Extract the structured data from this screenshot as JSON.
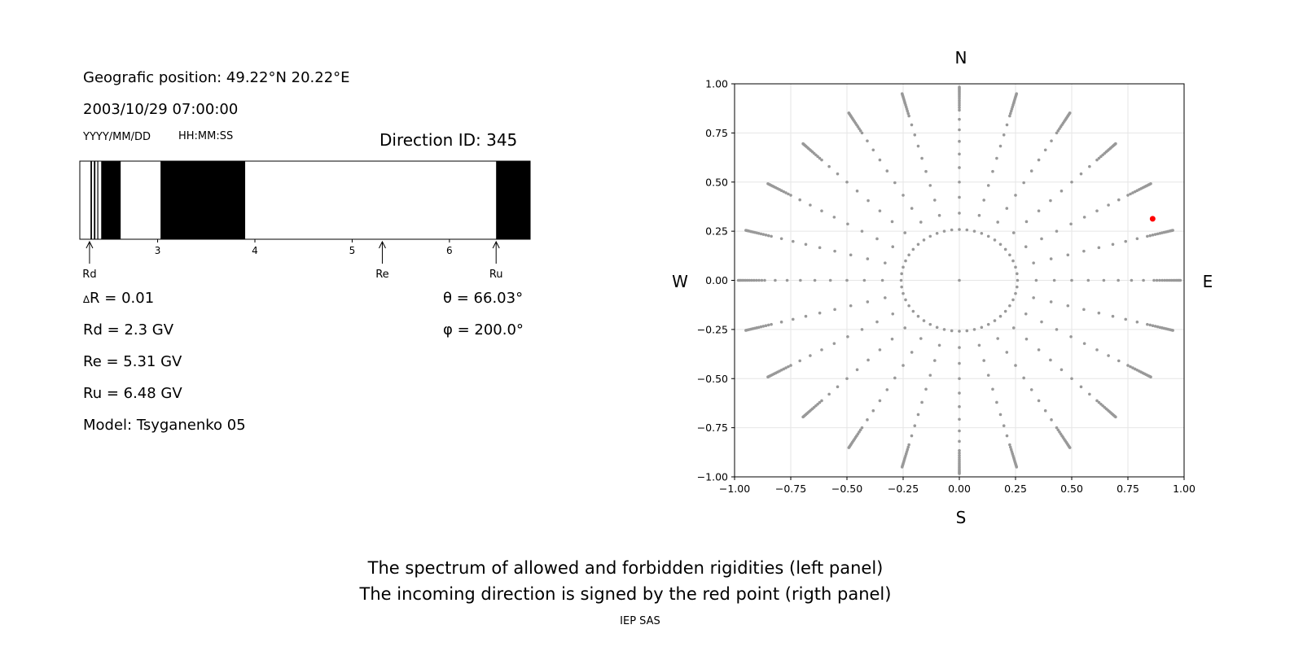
{
  "info": {
    "position": "Geografic position: 49.22°N 20.22°E",
    "datetime": "2003/10/29 07:00:00",
    "date_format": "YYYY/MM/DD",
    "time_format": "HH:MM:SS",
    "direction_id": "Direction ID: 345",
    "delta_r": "R = 0.01",
    "delta_symbol": "∆",
    "rd": "Rd = 2.3 GV",
    "re": "Re = 5.31 GV",
    "ru": "Ru = 6.48 GV",
    "model": "Model: Tsyganenko 05",
    "theta": "θ = 66.03°",
    "phi": "φ = 200.0°"
  },
  "footer": {
    "line1": "The spectrum of allowed and forbidden rigidities (left panel)",
    "line2": "The incoming direction is signed by the red point (rigth panel)",
    "credit": "IEP SAS"
  },
  "colors": {
    "forbidden": "#000000",
    "allowed": "#ffffff",
    "grid_point": "#999999",
    "direction_point": "#ff0000"
  },
  "chart_data": [
    {
      "type": "bar",
      "description_kind": "rigidity spectrum",
      "xlim": [
        2.2,
        6.83
      ],
      "xticks": [
        3,
        4,
        5,
        6
      ],
      "forbidden_bands": [
        [
          2.31,
          2.325
        ],
        [
          2.345,
          2.36
        ],
        [
          2.38,
          2.39
        ],
        [
          2.42,
          2.62
        ],
        [
          3.03,
          3.9
        ],
        [
          6.48,
          6.83
        ]
      ],
      "markers": [
        {
          "label": "Rd",
          "value": 2.3
        },
        {
          "label": "Re",
          "value": 5.31
        },
        {
          "label": "Ru",
          "value": 6.48
        }
      ]
    },
    {
      "type": "scatter",
      "xlim": [
        -1,
        1
      ],
      "ylim": [
        -1,
        1
      ],
      "xticks": [
        "−1.00",
        "−0.75",
        "−0.50",
        "−0.25",
        "0.00",
        "0.25",
        "0.50",
        "0.75",
        "1.00"
      ],
      "yticks": [
        "1.00",
        "0.75",
        "0.50",
        "0.25",
        "0.00",
        "−0.25",
        "−0.50",
        "−0.75",
        "−1.00"
      ],
      "compass": {
        "north": "N",
        "south": "S",
        "west": "W",
        "east": "E"
      },
      "grid_rays": 24,
      "grid_max_zenith_deg": 80,
      "highlight": {
        "x": 0.86,
        "y": 0.313
      }
    }
  ]
}
